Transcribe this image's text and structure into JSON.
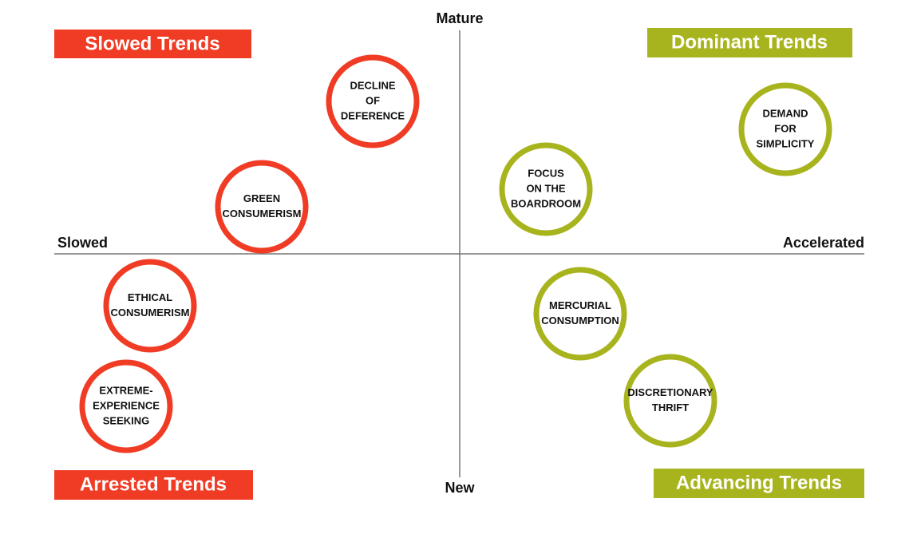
{
  "axes": {
    "top": "Mature",
    "bottom": "New",
    "left": "Slowed",
    "right": "Accelerated"
  },
  "quadrants": {
    "top_left": "Slowed Trends",
    "top_right": "Dominant Trends",
    "bottom_left": "Arrested Trends",
    "bottom_right": "Advancing Trends"
  },
  "nodes": [
    {
      "lines": [
        "DECLINE",
        "OF",
        "DEFERENCE"
      ]
    },
    {
      "lines": [
        "GREEN",
        "CONSUMERISM"
      ]
    },
    {
      "lines": [
        "ETHICAL",
        "CONSUMERISM"
      ]
    },
    {
      "lines": [
        "EXTREME-",
        "EXPERIENCE",
        "SEEKING"
      ]
    },
    {
      "lines": [
        "FOCUS",
        "ON THE",
        "BOARDROOM"
      ]
    },
    {
      "lines": [
        "DEMAND",
        "FOR",
        "SIMPLICITY"
      ]
    },
    {
      "lines": [
        "MERCURIAL",
        "CONSUMPTION"
      ]
    },
    {
      "lines": [
        "DISCRETIONARY",
        "THRIFT"
      ]
    }
  ]
}
